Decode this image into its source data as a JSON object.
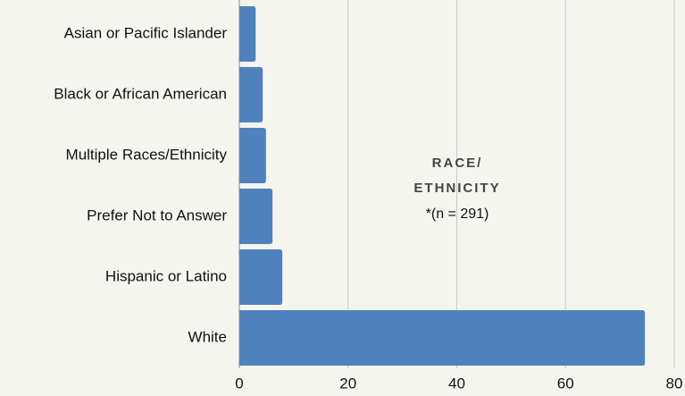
{
  "chart_data": {
    "type": "hbar",
    "annotation": [
      "RACE/",
      "ETHNICITY",
      "*(n = 291)"
    ],
    "categories": [
      "Asian or Pacific Islander",
      "Black or African American",
      "Multiple Races/Ethnicity",
      "Prefer Not to Answer",
      "Hispanic or Latino",
      "White"
    ],
    "values": [
      3,
      4.3,
      4.9,
      6.1,
      7.9,
      74.6
    ],
    "color": "#4f81bd",
    "xlim": [
      0,
      80
    ],
    "xticks": [
      0,
      20,
      40,
      60,
      80
    ],
    "grid": true
  }
}
